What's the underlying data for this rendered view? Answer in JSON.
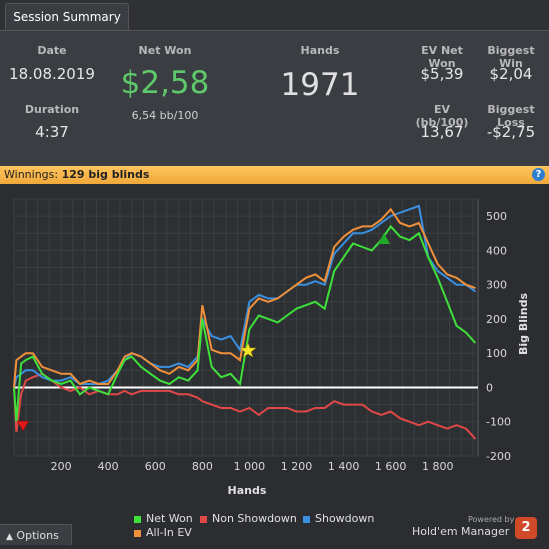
{
  "tab": {
    "label": "Session Summary"
  },
  "summary": {
    "date_label": "Date",
    "date": "18.08.2019",
    "duration_label": "Duration",
    "duration": "4:37",
    "net_won_label": "Net Won",
    "net_won": "$2,58",
    "net_won_bb": "6,54 bb/100",
    "hands_label": "Hands",
    "hands": "1971",
    "ev_net_won_label": "EV Net Won",
    "ev_net_won": "$5,39",
    "biggest_win_label": "Biggest Win",
    "biggest_win": "$2,04",
    "ev_bb_label": "EV (bb/100)",
    "ev_bb": "13,67",
    "biggest_loss_label": "Biggest Loss",
    "biggest_loss": "-$2,75"
  },
  "banner": {
    "label": "Winnings:",
    "value": "129 big blinds",
    "help": "?"
  },
  "colors": {
    "net_won": "#3ee03a",
    "non_showdown": "#e04848",
    "showdown": "#3a8fe0",
    "all_in_ev": "#f0903a",
    "accent": "#5ec96a"
  },
  "chart_data": {
    "type": "line",
    "xlabel": "Hands",
    "ylabel": "Big Blinds",
    "xlim": [
      0,
      1971
    ],
    "ylim": [
      -200,
      550
    ],
    "x_ticks": [
      "200",
      "400",
      "600",
      "800",
      "1 000",
      "1 200",
      "1 400",
      "1 600",
      "1 800"
    ],
    "x_tick_values": [
      200,
      400,
      600,
      800,
      1000,
      1200,
      1400,
      1600,
      1800
    ],
    "y_ticks": [
      -200,
      -100,
      0,
      100,
      200,
      300,
      400,
      500
    ],
    "x": [
      0,
      10,
      30,
      50,
      80,
      120,
      160,
      200,
      240,
      280,
      320,
      360,
      400,
      440,
      470,
      500,
      540,
      580,
      620,
      660,
      700,
      740,
      780,
      800,
      840,
      880,
      920,
      960,
      1000,
      1040,
      1080,
      1120,
      1160,
      1200,
      1240,
      1280,
      1320,
      1360,
      1400,
      1440,
      1480,
      1520,
      1560,
      1600,
      1640,
      1680,
      1720,
      1760,
      1800,
      1840,
      1880,
      1920,
      1960
    ],
    "series": [
      {
        "name": "Net Won",
        "values": [
          0,
          -100,
          70,
          80,
          90,
          40,
          20,
          10,
          20,
          -20,
          0,
          -10,
          -20,
          40,
          80,
          90,
          60,
          40,
          20,
          10,
          30,
          20,
          50,
          200,
          60,
          30,
          40,
          10,
          170,
          210,
          200,
          190,
          210,
          230,
          240,
          250,
          230,
          340,
          380,
          420,
          410,
          400,
          430,
          470,
          440,
          430,
          450,
          380,
          320,
          250,
          180,
          160,
          130
        ]
      },
      {
        "name": "Non Showdown",
        "values": [
          0,
          -130,
          -20,
          20,
          30,
          40,
          20,
          0,
          -10,
          0,
          -20,
          -10,
          -20,
          -20,
          -10,
          -20,
          -10,
          -10,
          -10,
          -10,
          -20,
          -20,
          -30,
          -40,
          -50,
          -60,
          -60,
          -70,
          -60,
          -80,
          -60,
          -60,
          -60,
          -70,
          -70,
          -60,
          -60,
          -40,
          -50,
          -50,
          -50,
          -70,
          -80,
          -70,
          -90,
          -100,
          -110,
          -100,
          -110,
          -120,
          -110,
          -120,
          -150
        ]
      },
      {
        "name": "Showdown",
        "values": [
          0,
          30,
          40,
          50,
          50,
          30,
          20,
          20,
          30,
          10,
          10,
          10,
          20,
          50,
          80,
          100,
          90,
          70,
          60,
          60,
          70,
          60,
          90,
          200,
          150,
          140,
          150,
          110,
          250,
          270,
          260,
          260,
          280,
          300,
          300,
          310,
          300,
          390,
          420,
          450,
          450,
          460,
          480,
          500,
          510,
          520,
          530,
          380,
          340,
          320,
          300,
          300,
          280
        ]
      },
      {
        "name": "All-In EV",
        "values": [
          0,
          80,
          90,
          100,
          100,
          60,
          50,
          40,
          40,
          10,
          20,
          10,
          10,
          50,
          90,
          100,
          90,
          70,
          50,
          40,
          60,
          50,
          80,
          240,
          110,
          100,
          100,
          80,
          230,
          260,
          250,
          260,
          280,
          300,
          320,
          330,
          310,
          410,
          440,
          460,
          470,
          470,
          490,
          520,
          480,
          470,
          480,
          420,
          360,
          330,
          320,
          300,
          290
        ]
      }
    ],
    "legend": [
      "Net Won",
      "Non Showdown",
      "Showdown",
      "All-In EV"
    ],
    "legend_placement": "bottom",
    "grid": true
  },
  "options": {
    "label": "Options"
  },
  "footer": {
    "powered": "Powered by",
    "brand": "Hold'em Manager",
    "logo_text": "2"
  }
}
